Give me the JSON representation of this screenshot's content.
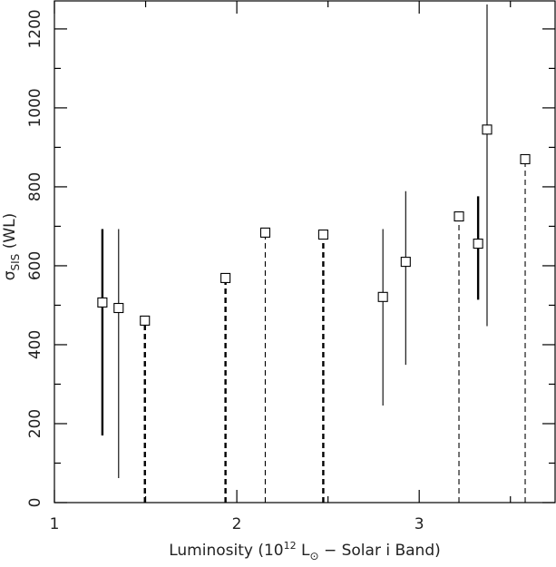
{
  "chart_data": {
    "type": "errorbar",
    "xlabel": {
      "parts": [
        "Luminosity (10",
        "12",
        " L",
        "⊙",
        " − Solar i Band)"
      ]
    },
    "ylabel": {
      "symbol": "σ",
      "subscript": "SIS",
      "rest": " (WL)"
    },
    "x": [
      1.263,
      1.352,
      1.496,
      1.938,
      2.156,
      2.474,
      2.801,
      2.926,
      3.218,
      3.323,
      3.372,
      3.581
    ],
    "values": [
      507,
      493,
      461,
      569,
      684,
      679,
      521,
      610,
      725,
      656,
      945,
      870
    ],
    "err_low": [
      170,
      62,
      0,
      0,
      0,
      0,
      246,
      349,
      0,
      514,
      447,
      0
    ],
    "err_high": [
      693,
      693,
      461,
      569,
      684,
      679,
      693,
      789,
      725,
      776,
      1262,
      870
    ],
    "dashed": [
      false,
      false,
      true,
      true,
      true,
      true,
      false,
      false,
      true,
      false,
      false,
      true
    ],
    "thick": [
      true,
      false,
      true,
      true,
      false,
      true,
      false,
      false,
      false,
      true,
      false,
      false
    ],
    "color": "#000000",
    "xlim": [
      1,
      3.745
    ],
    "ylim": [
      0,
      1271
    ],
    "xticks": [
      1,
      2,
      3
    ],
    "yticks": [
      0,
      200,
      400,
      600,
      800,
      1000,
      1200
    ],
    "xminorticks": [
      1.5,
      2.5,
      3.5
    ],
    "yminorticks": [
      100,
      300,
      500,
      700,
      900,
      1100
    ],
    "grid": false
  }
}
